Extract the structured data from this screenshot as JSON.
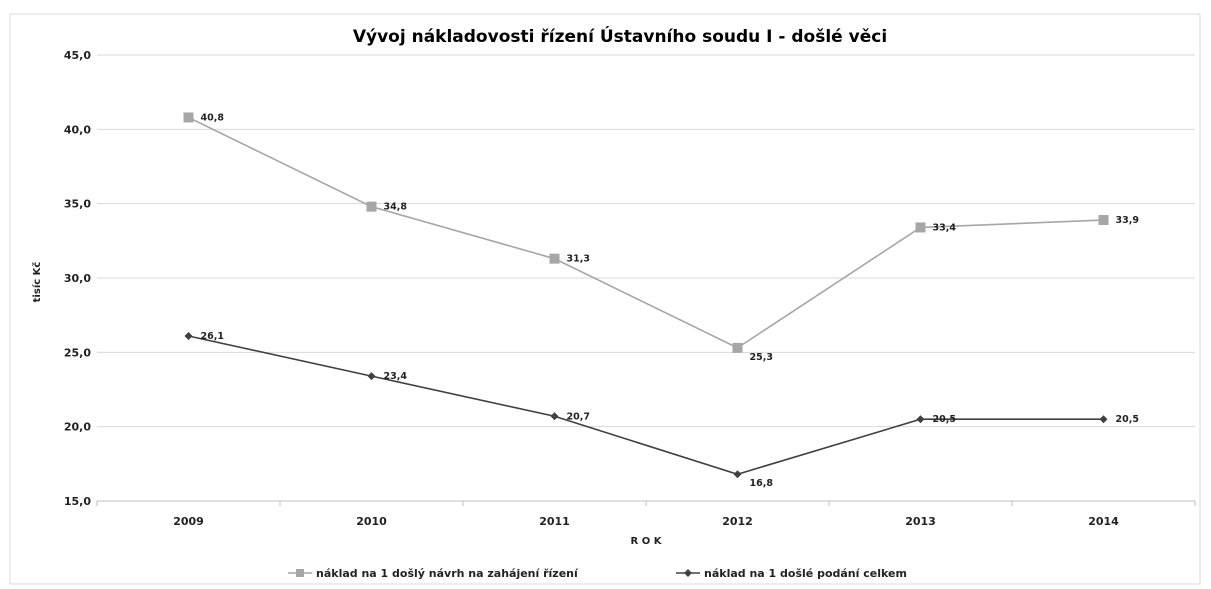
{
  "chart_data": {
    "type": "line",
    "title": "Vývoj nákladovosti řízení Ústavního soudu I - došlé věci",
    "xlabel": "R O K",
    "ylabel": "tisíc Kč",
    "categories": [
      "2009",
      "2010",
      "2011",
      "2012",
      "2013",
      "2014"
    ],
    "ylim": [
      15,
      45
    ],
    "yticks": [
      "15,0",
      "20,0",
      "25,0",
      "30,0",
      "35,0",
      "40,0",
      "45,0"
    ],
    "grid": true,
    "legend_position": "bottom",
    "series": [
      {
        "name": "náklad na 1 došlý návrh na zahájení řízení",
        "values": [
          40.8,
          34.8,
          31.3,
          25.3,
          33.4,
          33.9
        ],
        "labels": [
          "40,8",
          "34,8",
          "31,3",
          "25,3",
          "33,4",
          "33,9"
        ],
        "color": "#a6a6a6",
        "marker": "square"
      },
      {
        "name": "náklad na 1 došlé podání celkem",
        "values": [
          26.1,
          23.4,
          20.7,
          16.8,
          20.5,
          20.5
        ],
        "labels": [
          "26,1",
          "23,4",
          "20,7",
          "16,8",
          "20,5",
          "20,5"
        ],
        "color": "#404040",
        "marker": "diamond"
      }
    ]
  }
}
